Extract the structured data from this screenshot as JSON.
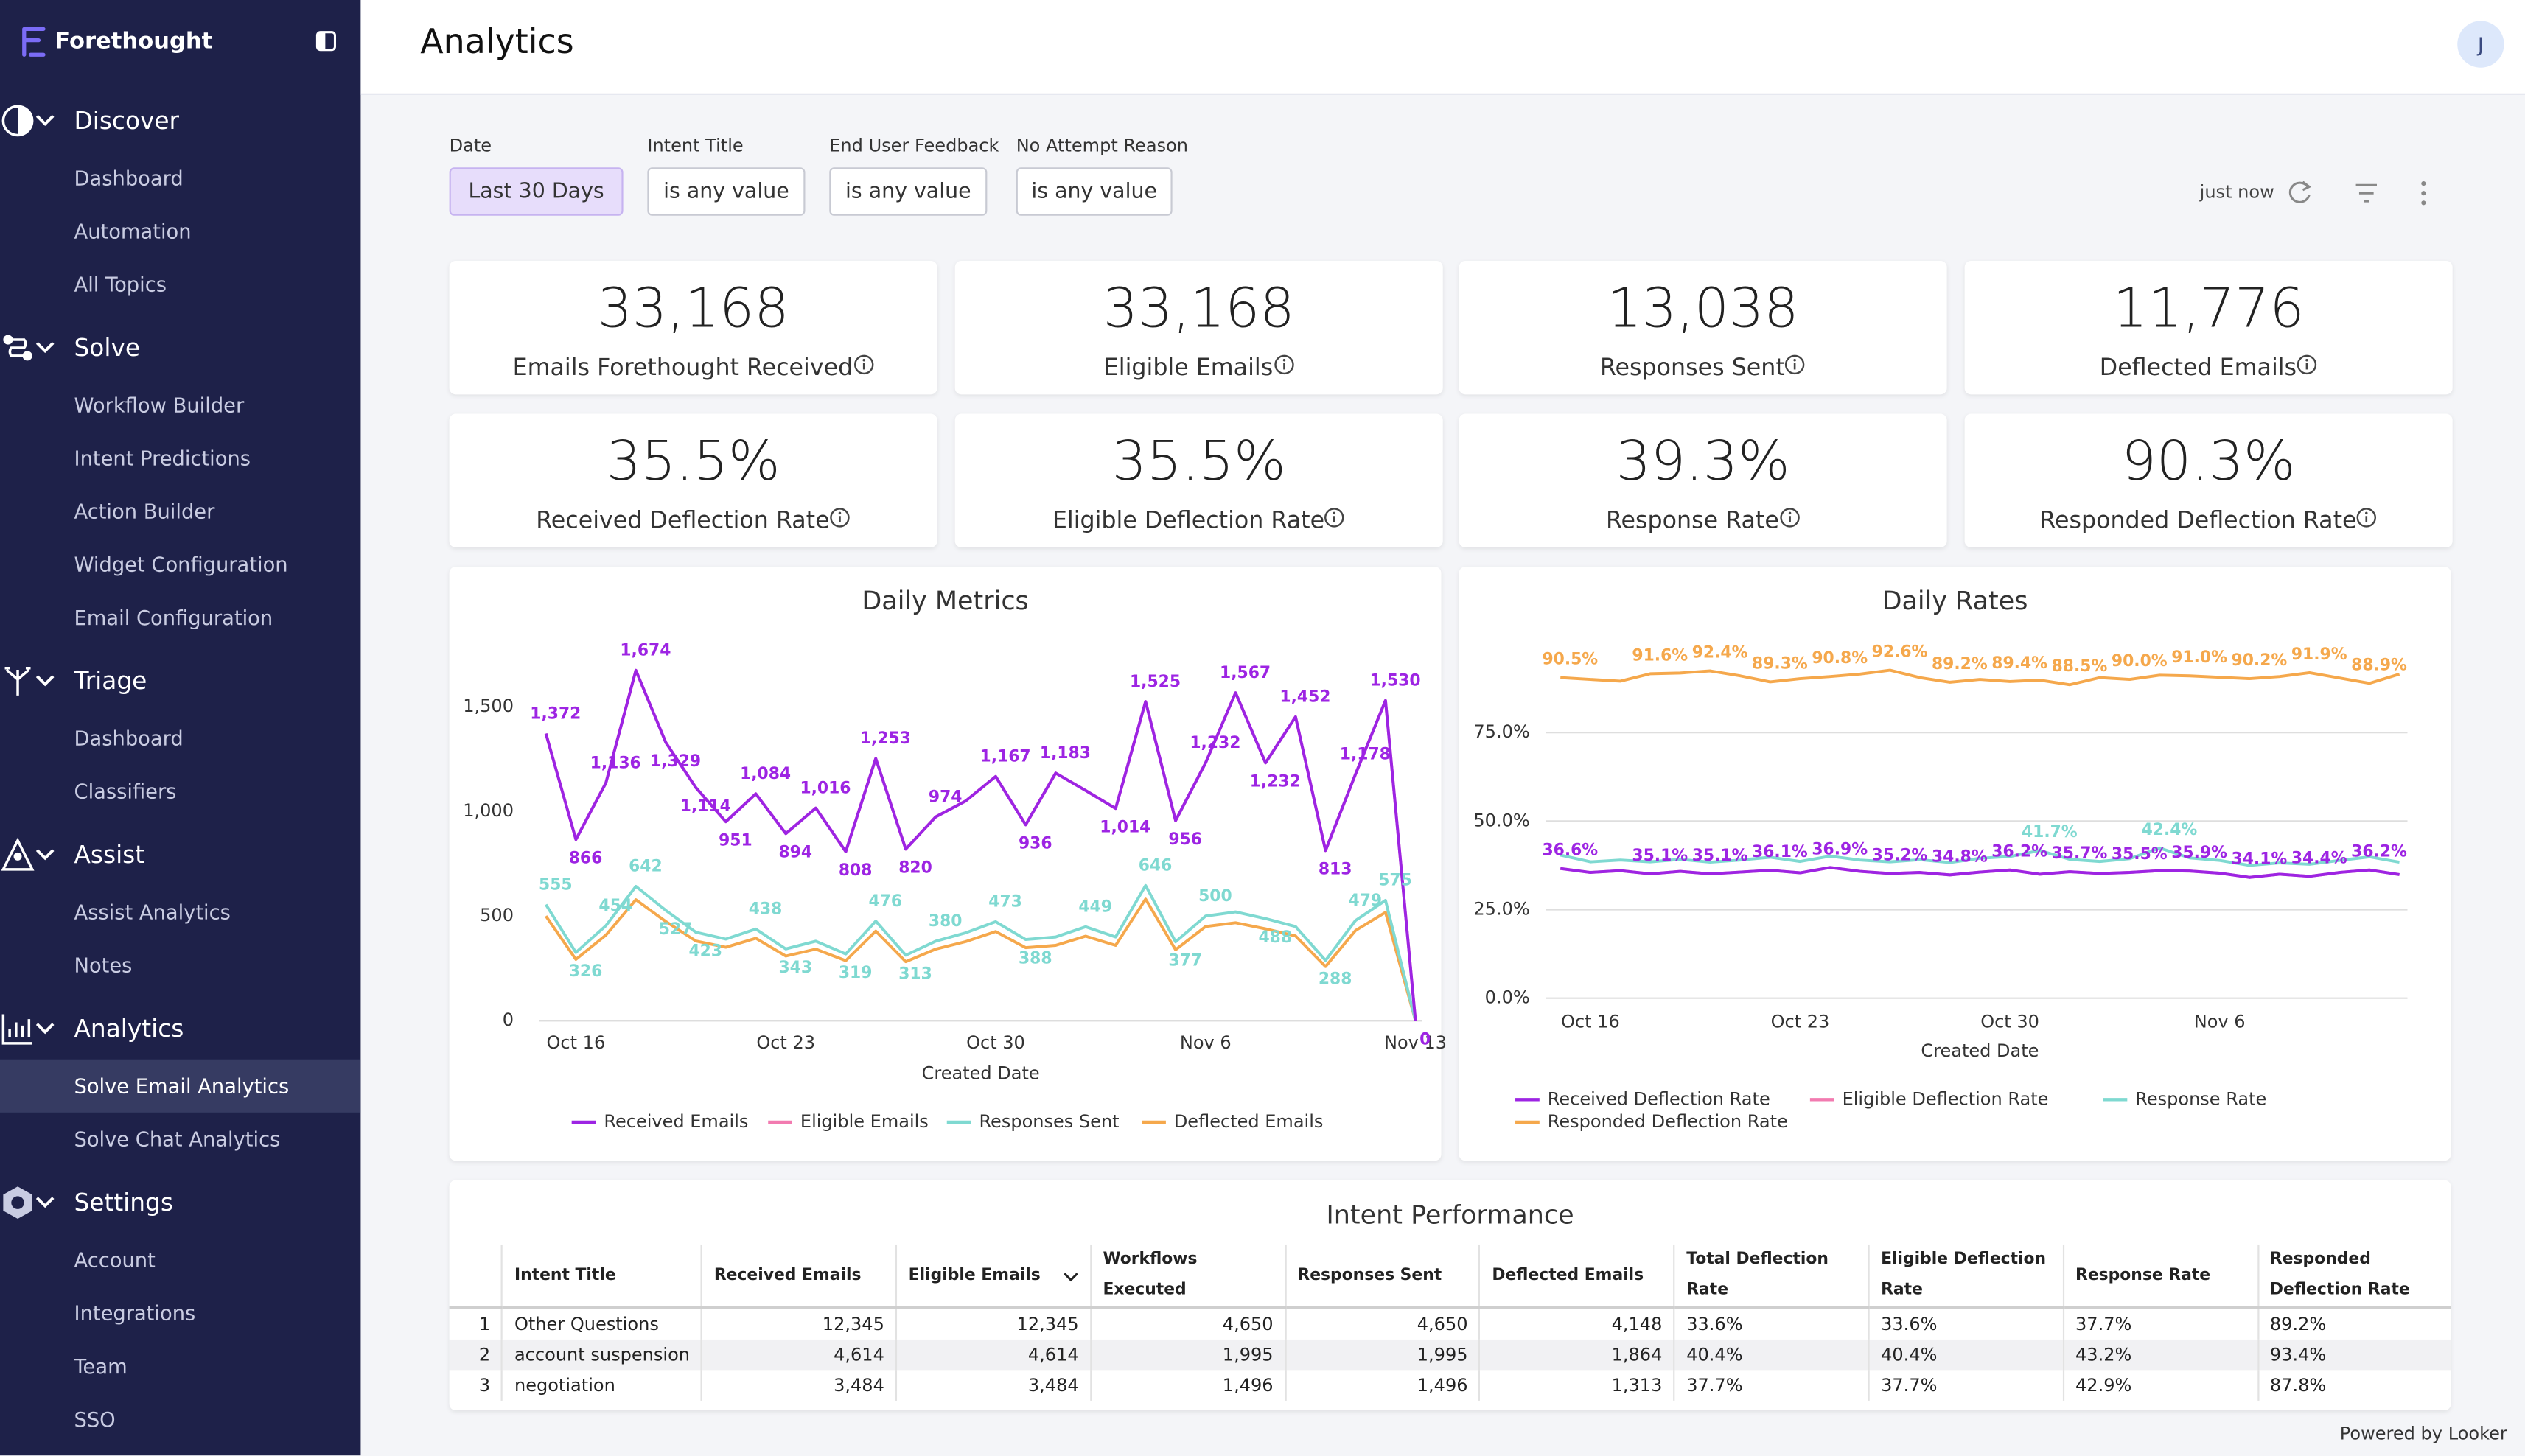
{
  "sidebar": {
    "brand": "Forethought",
    "sections": [
      {
        "title": "Discover",
        "items": [
          "Dashboard",
          "Automation",
          "All Topics"
        ]
      },
      {
        "title": "Solve",
        "items": [
          "Workflow Builder",
          "Intent Predictions",
          "Action Builder",
          "Widget Configuration",
          "Email Configuration"
        ]
      },
      {
        "title": "Triage",
        "items": [
          "Dashboard",
          "Classifiers"
        ]
      },
      {
        "title": "Assist",
        "items": [
          "Assist Analytics",
          "Notes"
        ]
      },
      {
        "title": "Analytics",
        "items": [
          "Solve Email Analytics",
          "Solve Chat Analytics"
        ]
      },
      {
        "title": "Settings",
        "items": [
          "Account",
          "Integrations",
          "Team",
          "SSO"
        ]
      }
    ]
  },
  "header": {
    "title": "Analytics",
    "avatar": "J"
  },
  "filters": [
    {
      "label": "Date",
      "value": "Last 30 Days"
    },
    {
      "label": "Intent Title",
      "value": "is any value"
    },
    {
      "label": "End User Feedback",
      "value": "is any value"
    },
    {
      "label": "No Attempt Reason",
      "value": "is any value"
    }
  ],
  "refresh": "just now",
  "kpis": [
    {
      "value": "33,168",
      "label": "Emails Forethought Received"
    },
    {
      "value": "33,168",
      "label": "Eligible Emails"
    },
    {
      "value": "13,038",
      "label": "Responses Sent"
    },
    {
      "value": "11,776",
      "label": "Deflected Emails"
    },
    {
      "value": "35.5%",
      "label": "Received Deflection Rate"
    },
    {
      "value": "35.5%",
      "label": "Eligible Deflection Rate"
    },
    {
      "value": "39.3%",
      "label": "Response Rate"
    },
    {
      "value": "90.3%",
      "label": "Responded Deflection Rate"
    }
  ],
  "chart_data": [
    {
      "type": "line",
      "title": "Daily Metrics",
      "x_label": "Created Date",
      "categories": [
        null,
        "Oct 16",
        null,
        null,
        null,
        null,
        null,
        null,
        "Oct 23",
        null,
        null,
        null,
        null,
        null,
        null,
        "Oct 30",
        null,
        null,
        null,
        null,
        null,
        null,
        "Nov 6",
        null,
        null,
        null,
        null,
        null,
        null,
        "Nov 13"
      ],
      "ylim": [
        0,
        1750
      ],
      "yticks": [
        0,
        500,
        {
          "value": 1000,
          "label": "1,000"
        },
        {
          "value": 1500,
          "label": "1,500"
        }
      ],
      "grid": false,
      "legend": "bottom",
      "series": [
        {
          "name": "Received Emails",
          "color": "#9d24e3",
          "values": [
            1372,
            866,
            1136,
            1674,
            1329,
            1114,
            951,
            1084,
            894,
            1016,
            808,
            1253,
            820,
            974,
            1050,
            1167,
            936,
            1183,
            1100,
            1014,
            1525,
            956,
            1232,
            1567,
            1232,
            1452,
            813,
            1178,
            1530,
            0
          ],
          "value_labels": [
            "1,372",
            "866",
            "1,136",
            "1,674",
            "1,329",
            "1,114",
            "951",
            "1,084",
            "894",
            "1,016",
            "808",
            "1,253",
            "820",
            "974",
            null,
            "1,167",
            "936",
            "1,183",
            null,
            "1,014",
            "1,525",
            "956",
            "1,232",
            "1,567",
            "1,232",
            "1,452",
            "813",
            "1,178",
            "1,530",
            "0"
          ]
        },
        {
          "name": "Eligible Emails",
          "color": "#f27bb0",
          "values": [
            1372,
            866,
            1136,
            1674,
            1329,
            1114,
            951,
            1084,
            894,
            1016,
            808,
            1253,
            820,
            974,
            1050,
            1167,
            936,
            1183,
            1100,
            1014,
            1525,
            956,
            1232,
            1567,
            1232,
            1452,
            813,
            1178,
            1530,
            0
          ]
        },
        {
          "name": "Responses Sent",
          "color": "#7fd9d1",
          "values": [
            555,
            326,
            454,
            642,
            527,
            423,
            390,
            438,
            343,
            380,
            319,
            476,
            313,
            380,
            420,
            473,
            388,
            400,
            449,
            400,
            646,
            377,
            500,
            520,
            488,
            450,
            288,
            479,
            575,
            0
          ],
          "value_labels": [
            "555",
            "326",
            "454",
            "642",
            "527",
            "423",
            null,
            "438",
            "343",
            null,
            "319",
            "476",
            "313",
            "380",
            null,
            "473",
            "388",
            null,
            "449",
            null,
            "646",
            "377",
            "500",
            null,
            "488",
            null,
            "288",
            "479",
            "575",
            null
          ]
        },
        {
          "name": "Deflected Emails",
          "color": "#f5a84c",
          "values": [
            500,
            293,
            409,
            578,
            474,
            381,
            351,
            394,
            309,
            342,
            287,
            428,
            282,
            342,
            378,
            426,
            349,
            360,
            404,
            360,
            581,
            339,
            450,
            468,
            439,
            405,
            259,
            431,
            518,
            0
          ]
        }
      ]
    },
    {
      "type": "line",
      "title": "Daily Rates",
      "x_label": "Created Date",
      "categories": [
        null,
        "Oct 16",
        null,
        null,
        null,
        null,
        null,
        null,
        "Oct 23",
        null,
        null,
        null,
        null,
        null,
        null,
        "Oct 30",
        null,
        null,
        null,
        null,
        null,
        null,
        "Nov 6",
        null,
        null,
        null,
        null,
        null,
        null
      ],
      "ylim": [
        0,
        100
      ],
      "yticks": [
        {
          "value": 0,
          "label": "0.0%"
        },
        {
          "value": 25,
          "label": "25.0%"
        },
        {
          "value": 50,
          "label": "50.0%"
        },
        {
          "value": 75,
          "label": "75.0%"
        }
      ],
      "grid": true,
      "legend": "bottom",
      "series": [
        {
          "name": "Received Deflection Rate",
          "color": "#9d24e3",
          "values": [
            36.6,
            35.5,
            36.0,
            35.1,
            35.8,
            35.1,
            35.6,
            36.1,
            35.4,
            36.9,
            35.8,
            35.2,
            35.5,
            34.8,
            35.6,
            36.2,
            35.0,
            35.7,
            35.2,
            35.5,
            36.0,
            35.9,
            35.3,
            34.1,
            35.0,
            34.4,
            35.5,
            36.2,
            34.9
          ],
          "value_labels": [
            "36.6%",
            null,
            null,
            "35.1%",
            null,
            "35.1%",
            null,
            "36.1%",
            null,
            "36.9%",
            null,
            "35.2%",
            null,
            "34.8%",
            null,
            "36.2%",
            null,
            "35.7%",
            null,
            "35.5%",
            null,
            "35.9%",
            null,
            "34.1%",
            null,
            "34.4%",
            null,
            "36.2%",
            null
          ]
        },
        {
          "name": "Eligible Deflection Rate",
          "color": "#f27bb0",
          "values": [
            36.6,
            35.5,
            36.0,
            35.1,
            35.8,
            35.1,
            35.6,
            36.1,
            35.4,
            36.9,
            35.8,
            35.2,
            35.5,
            34.8,
            35.6,
            36.2,
            35.0,
            35.7,
            35.2,
            35.5,
            36.0,
            35.9,
            35.3,
            34.1,
            35.0,
            34.4,
            35.5,
            36.2,
            34.9
          ]
        },
        {
          "name": "Response Rate",
          "color": "#7fd9d1",
          "values": [
            40.4,
            38.5,
            39.0,
            38.5,
            39.2,
            38.4,
            39.0,
            39.8,
            38.6,
            40.1,
            39.0,
            38.5,
            39.1,
            38.3,
            39.5,
            40.0,
            41.7,
            39.2,
            38.6,
            39.4,
            42.4,
            39.6,
            38.9,
            37.5,
            38.2,
            37.8,
            38.9,
            39.9,
            38.4
          ],
          "value_labels": [
            null,
            null,
            null,
            null,
            null,
            null,
            null,
            null,
            null,
            null,
            null,
            null,
            null,
            null,
            null,
            null,
            "41.7%",
            null,
            null,
            null,
            "42.4%",
            null,
            null,
            null,
            null,
            null,
            null,
            null,
            null
          ]
        },
        {
          "name": "Responded Deflection Rate",
          "color": "#f5a84c",
          "values": [
            90.5,
            90.0,
            89.5,
            91.6,
            91.8,
            92.4,
            91.0,
            89.3,
            90.2,
            90.8,
            91.5,
            92.6,
            90.5,
            89.2,
            90.0,
            89.4,
            89.8,
            88.5,
            90.5,
            90.0,
            91.2,
            91.0,
            90.6,
            90.2,
            90.8,
            91.9,
            90.4,
            88.9,
            91.5
          ],
          "value_labels": [
            "90.5%",
            null,
            null,
            "91.6%",
            null,
            "92.4%",
            null,
            "89.3%",
            null,
            "90.8%",
            null,
            "92.6%",
            null,
            "89.2%",
            null,
            "89.4%",
            null,
            "88.5%",
            null,
            "90.0%",
            null,
            "91.0%",
            null,
            "90.2%",
            null,
            "91.9%",
            null,
            "88.9%",
            null
          ]
        }
      ]
    }
  ],
  "table": {
    "title": "Intent Performance",
    "columns": [
      "Intent Title",
      "Received Emails",
      "Eligible Emails",
      "Workflows Executed",
      "Responses Sent",
      "Deflected Emails",
      "Total Deflection Rate",
      "Eligible Deflection Rate",
      "Response Rate",
      "Responded Deflection Rate"
    ],
    "rows": [
      [
        "1",
        "Other Questions",
        "12,345",
        "12,345",
        "4,650",
        "4,650",
        "4,148",
        "33.6%",
        "33.6%",
        "37.7%",
        "89.2%"
      ],
      [
        "2",
        "account suspension",
        "4,614",
        "4,614",
        "1,995",
        "1,995",
        "1,864",
        "40.4%",
        "40.4%",
        "43.2%",
        "93.4%"
      ],
      [
        "3",
        "negotiation",
        "3,484",
        "3,484",
        "1,496",
        "1,496",
        "1,313",
        "37.7%",
        "37.7%",
        "42.9%",
        "87.8%"
      ]
    ]
  },
  "footer": {
    "text": "Powered by",
    "brand": "Looker"
  }
}
